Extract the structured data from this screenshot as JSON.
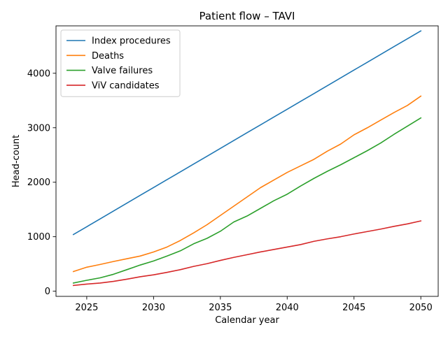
{
  "chart_data": {
    "type": "line",
    "title": "Patient flow – TAVI",
    "xlabel": "Calendar year",
    "ylabel": "Head-count",
    "xlim": [
      2022.7,
      2051.3
    ],
    "ylim": [
      -95,
      4870
    ],
    "xticks": [
      2025,
      2030,
      2035,
      2040,
      2045,
      2050
    ],
    "yticks": [
      0,
      1000,
      2000,
      3000,
      4000
    ],
    "grid": false,
    "legend_position": "upper-left",
    "x": [
      2024,
      2025,
      2026,
      2027,
      2028,
      2029,
      2030,
      2031,
      2032,
      2033,
      2034,
      2035,
      2036,
      2037,
      2038,
      2039,
      2040,
      2041,
      2042,
      2043,
      2044,
      2045,
      2046,
      2047,
      2048,
      2049,
      2050
    ],
    "series": [
      {
        "name": "Index procedures",
        "color": "#1f77b4",
        "values": [
          1040,
          1183,
          1327,
          1471,
          1615,
          1759,
          1903,
          2046,
          2190,
          2334,
          2477,
          2621,
          2765,
          2909,
          3052,
          3196,
          3340,
          3484,
          3627,
          3771,
          3915,
          4059,
          4202,
          4346,
          4490,
          4633,
          4777
        ]
      },
      {
        "name": "Deaths",
        "color": "#ff7f0e",
        "values": [
          360,
          440,
          490,
          545,
          595,
          645,
          720,
          810,
          930,
          1070,
          1220,
          1390,
          1560,
          1730,
          1900,
          2040,
          2180,
          2300,
          2420,
          2570,
          2700,
          2870,
          3000,
          3140,
          3280,
          3410,
          3580
        ]
      },
      {
        "name": "Valve failures",
        "color": "#2ca02c",
        "values": [
          150,
          200,
          245,
          310,
          395,
          480,
          555,
          645,
          740,
          870,
          970,
          1100,
          1270,
          1380,
          1520,
          1660,
          1780,
          1930,
          2070,
          2200,
          2320,
          2450,
          2580,
          2720,
          2880,
          3030,
          3180
        ]
      },
      {
        "name": "ViV candidates",
        "color": "#d62728",
        "values": [
          105,
          130,
          150,
          180,
          220,
          265,
          300,
          345,
          395,
          455,
          505,
          565,
          620,
          670,
          720,
          765,
          810,
          855,
          915,
          960,
          1000,
          1050,
          1095,
          1140,
          1190,
          1235,
          1290
        ]
      }
    ]
  }
}
